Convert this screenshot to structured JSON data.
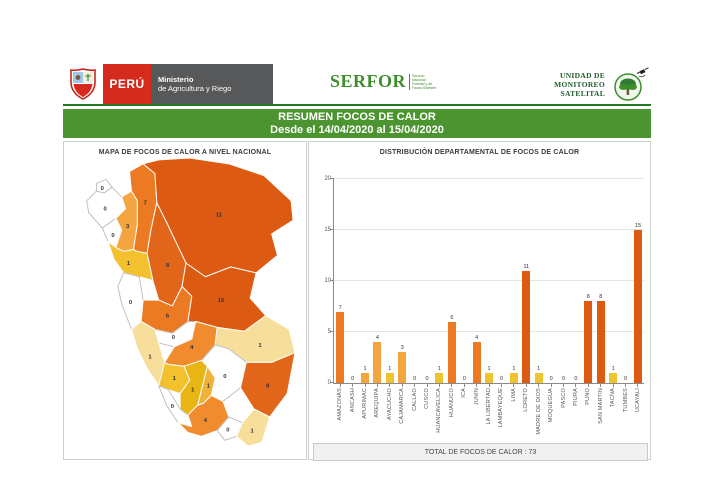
{
  "header": {
    "peru_logo": {
      "country": "PERÚ",
      "ministry_line1": "Ministerio",
      "ministry_line2": "de Agricultura y Riego"
    },
    "serfor": {
      "name": "SERFOR",
      "tagline_line1": "Servicio",
      "tagline_line2": "Nacional",
      "tagline_line3": "Forestal y de",
      "tagline_line4": "Fauna Silvestre"
    },
    "ums": {
      "line1": "UNIDAD DE",
      "line2": "MONITOREO",
      "line3": "SATELITAL"
    }
  },
  "banner": {
    "title": "RESUMEN FOCOS DE CALOR",
    "subtitle": "Desde el 14/04/2020 al 15/04/2020",
    "color": "#4C9430"
  },
  "map_panel": {
    "title": "MAPA DE FOCOS DE CALOR A NIVEL NACIONAL",
    "regions": [
      {
        "id": "tumbes",
        "name": "Tumbes",
        "value": 0,
        "color": "#FFFFFF"
      },
      {
        "id": "piura",
        "name": "Piura",
        "value": 0,
        "color": "#FFFFFF"
      },
      {
        "id": "lambayeque",
        "name": "Lambayeque",
        "value": 0,
        "color": "#FFFFFF"
      },
      {
        "id": "cajamarca",
        "name": "Cajamarca",
        "value": 3,
        "color": "#F4A540"
      },
      {
        "id": "amazonas",
        "name": "Amazonas",
        "value": 7,
        "color": "#EC7A22"
      },
      {
        "id": "loreto",
        "name": "Loreto",
        "value": 11,
        "color": "#DC5A12"
      },
      {
        "id": "san_martin",
        "name": "San Martín",
        "value": 8,
        "color": "#E2661A"
      },
      {
        "id": "la_libertad",
        "name": "La Libertad",
        "value": 1,
        "color": "#F2C12D"
      },
      {
        "id": "ancash",
        "name": "Áncash",
        "value": 0,
        "color": "#FFFFFF"
      },
      {
        "id": "huanuco",
        "name": "Huánuco",
        "value": 6,
        "color": "#EC7A22"
      },
      {
        "id": "ucayali",
        "name": "Ucayali",
        "value": 15,
        "color": "#DC5A12"
      },
      {
        "id": "pasco",
        "name": "Pasco",
        "value": 0,
        "color": "#FFFFFF"
      },
      {
        "id": "lima",
        "name": "Lima",
        "value": 1,
        "color": "#F7DE9A"
      },
      {
        "id": "junin",
        "name": "Junín",
        "value": 4,
        "color": "#F08C2E"
      },
      {
        "id": "madre_de_dios",
        "name": "Madre de Dios",
        "value": 1,
        "color": "#F7DE9A"
      },
      {
        "id": "huancavelica",
        "name": "Huancavelica",
        "value": 1,
        "color": "#F2C12D"
      },
      {
        "id": "cusco",
        "name": "Cusco",
        "value": 0,
        "color": "#FFFFFF"
      },
      {
        "id": "ayacucho",
        "name": "Ayacucho",
        "value": 1,
        "color": "#E9B515"
      },
      {
        "id": "apurimac",
        "name": "Apurímac",
        "value": 1,
        "color": "#EFB33C"
      },
      {
        "id": "ica",
        "name": "Ica",
        "value": 0,
        "color": "#FFFFFF"
      },
      {
        "id": "arequipa",
        "name": "Arequipa",
        "value": 4,
        "color": "#F08C2E"
      },
      {
        "id": "puno",
        "name": "Puno",
        "value": 8,
        "color": "#E2661A"
      },
      {
        "id": "moquegua",
        "name": "Moquegua",
        "value": 0,
        "color": "#FFFFFF"
      },
      {
        "id": "tacna",
        "name": "Tacna",
        "value": 1,
        "color": "#F7DE9A"
      }
    ]
  },
  "chart_panel": {
    "title": "DISTRIBUCIÓN DEPARTAMENTAL DE FOCOS DE CALOR",
    "total_text": "TOTAL DE FOCOS DE CALOR : 73"
  },
  "chart_data": {
    "type": "bar",
    "title": "DISTRIBUCIÓN DEPARTAMENTAL DE FOCOS DE CALOR",
    "categories": [
      "AMAZONAS",
      "ANCASH",
      "APURÍMAC",
      "AREQUIPA",
      "AYACUCHO",
      "CAJAMARCA",
      "CALLAO",
      "CUSCO",
      "HUANCAVELICA",
      "HUÁNUCO",
      "ICA",
      "JUNÍN",
      "LA LIBERTAD",
      "LAMBAYEQUE",
      "LIMA",
      "LORETO",
      "MADRE DE DIOS",
      "MOQUEGUA",
      "PASCO",
      "PIURA",
      "PUNO",
      "SAN MARTÍN",
      "TACNA",
      "TUMBES",
      "UCAYALI"
    ],
    "values": [
      7,
      0,
      1,
      4,
      1,
      3,
      0,
      0,
      1,
      6,
      0,
      4,
      1,
      0,
      1,
      11,
      1,
      0,
      0,
      0,
      8,
      8,
      1,
      0,
      15
    ],
    "bar_colors": [
      "#EC7A22",
      "",
      "#F4A540",
      "#F4A540",
      "#EFC32F",
      "#F4A540",
      "",
      "",
      "#EFC32F",
      "#EC7A22",
      "",
      "#EC7A22",
      "#EFC32F",
      "",
      "#EFC32F",
      "#DC5A12",
      "#EFC32F",
      "",
      "",
      "",
      "#DC5A12",
      "#DC5A12",
      "#EFC32F",
      "",
      "#DC5A12"
    ],
    "xlabel": "",
    "ylabel": "",
    "ylim": [
      0,
      20
    ],
    "yticks": [
      0,
      5,
      10,
      15,
      20
    ],
    "grid": true,
    "legend": false,
    "total": 73
  }
}
